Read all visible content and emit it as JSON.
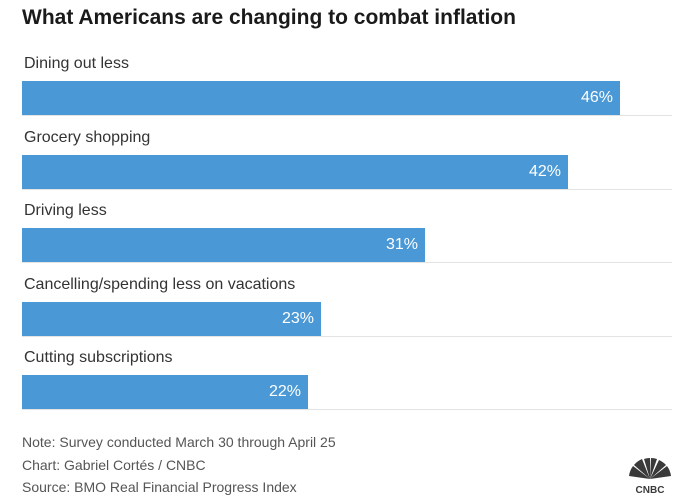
{
  "chart_data": {
    "type": "bar",
    "orientation": "horizontal",
    "title": "What Americans are changing to combat inflation",
    "categories": [
      "Dining out less",
      "Grocery shopping",
      "Driving less",
      "Cancelling/spending less on vacations",
      "Cutting subscriptions"
    ],
    "values": [
      46,
      42,
      31,
      23,
      22
    ],
    "value_labels": [
      "46%",
      "42%",
      "31%",
      "23%",
      "22%"
    ],
    "xlim": [
      0,
      50
    ],
    "grid": false,
    "bar_color": "#4a98d6"
  },
  "footer": {
    "note": "Note: Survey conducted March 30 through April 25",
    "credit": "Chart: Gabriel Cortés / CNBC",
    "source": "Source: BMO Real Financial Progress Index"
  },
  "logo": {
    "name": "CNBC",
    "icon": "peacock-icon"
  }
}
